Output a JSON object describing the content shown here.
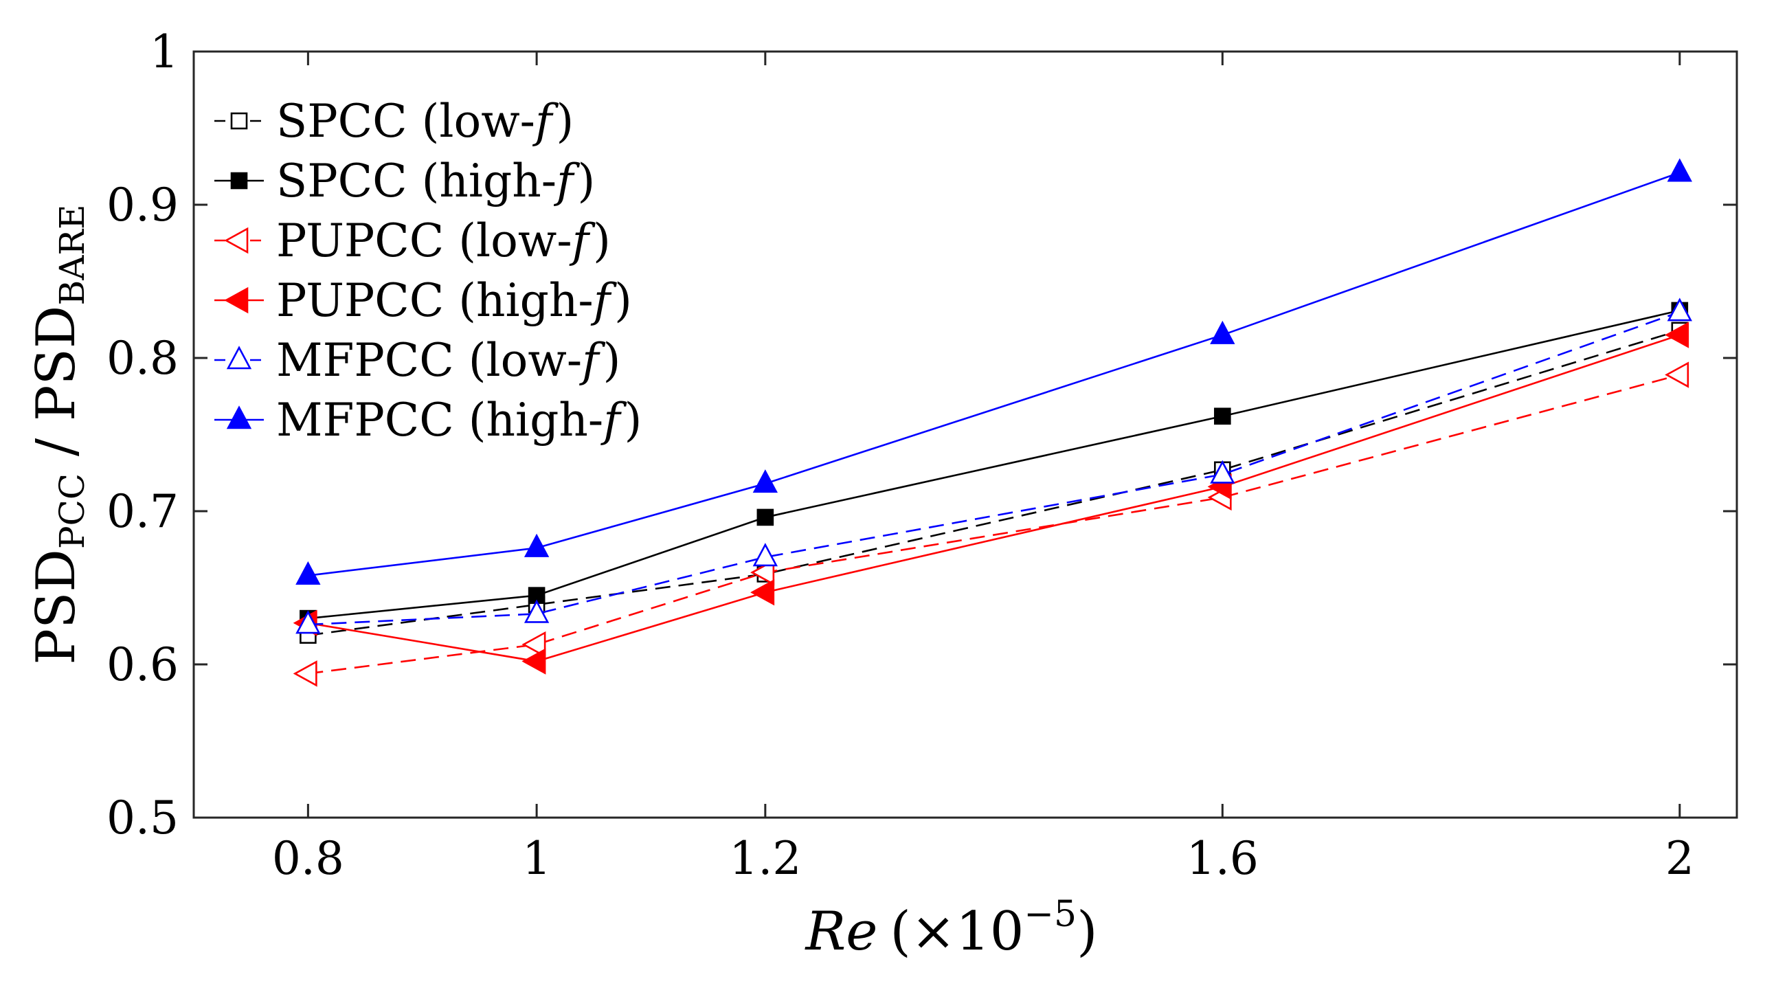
{
  "chart_data": {
    "type": "line",
    "title": "",
    "xlabel": {
      "main": "Re",
      "prefix": "(×10",
      "exponent": "−5",
      "suffix": ")"
    },
    "ylabel": {
      "num": "PSD",
      "num_sub": "PCC",
      "sep": " / ",
      "den": "PSD",
      "den_sub": "BARE"
    },
    "xlim": [
      0.7,
      2.05
    ],
    "ylim": [
      0.5,
      1.0
    ],
    "xticks": [
      0.8,
      1.0,
      1.2,
      1.6,
      2.0
    ],
    "xtick_labels": [
      "0.8",
      "1",
      "1.2",
      "1.6",
      "2"
    ],
    "yticks": [
      0.5,
      0.6,
      0.7,
      0.8,
      0.9,
      1.0
    ],
    "ytick_labels": [
      "0.5",
      "0.6",
      "0.7",
      "0.8",
      "0.9",
      "1"
    ],
    "grid": false,
    "legend_position": "top-left",
    "series": [
      {
        "name": "SPCC (low-",
        "freq": "f",
        "tail": ")",
        "color": "#000000",
        "dash": true,
        "marker": "square",
        "filled": false,
        "x": [
          0.8,
          1.0,
          1.2,
          1.6,
          2.0
        ],
        "y": [
          0.619,
          0.639,
          0.659,
          0.727,
          0.818
        ]
      },
      {
        "name": "SPCC (high-",
        "freq": "f",
        "tail": ")",
        "color": "#000000",
        "dash": false,
        "marker": "square",
        "filled": true,
        "x": [
          0.8,
          1.0,
          1.2,
          1.6,
          2.0
        ],
        "y": [
          0.63,
          0.645,
          0.696,
          0.762,
          0.831
        ]
      },
      {
        "name": "PUPCC (low-",
        "freq": "f",
        "tail": ")",
        "color": "#ff0000",
        "dash": true,
        "marker": "triangle-left",
        "filled": false,
        "x": [
          0.8,
          1.0,
          1.2,
          1.6,
          2.0
        ],
        "y": [
          0.594,
          0.613,
          0.66,
          0.709,
          0.789
        ]
      },
      {
        "name": "PUPCC (high-",
        "freq": "f",
        "tail": ")",
        "color": "#ff0000",
        "dash": false,
        "marker": "triangle-left",
        "filled": true,
        "x": [
          0.8,
          1.0,
          1.2,
          1.6,
          2.0
        ],
        "y": [
          0.627,
          0.602,
          0.647,
          0.716,
          0.815
        ]
      },
      {
        "name": "MFPCC (low-",
        "freq": "f",
        "tail": ")",
        "color": "#0000ff",
        "dash": true,
        "marker": "triangle-up",
        "filled": false,
        "x": [
          0.8,
          1.0,
          1.2,
          1.6,
          2.0
        ],
        "y": [
          0.626,
          0.633,
          0.67,
          0.724,
          0.83
        ]
      },
      {
        "name": "MFPCC (high-",
        "freq": "f",
        "tail": ")",
        "color": "#0000ff",
        "dash": false,
        "marker": "triangle-up",
        "filled": true,
        "x": [
          0.8,
          1.0,
          1.2,
          1.6,
          2.0
        ],
        "y": [
          0.658,
          0.676,
          0.718,
          0.815,
          0.921
        ]
      }
    ]
  }
}
